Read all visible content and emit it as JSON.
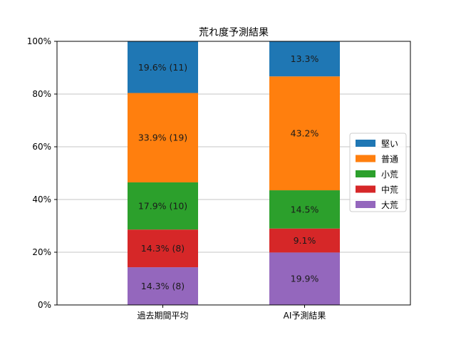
{
  "chart_data": {
    "type": "bar",
    "stacked": true,
    "title": "荒れ度予測結果",
    "categories": [
      "過去期間平均",
      "AI予測結果"
    ],
    "series": [
      {
        "name": "大荒",
        "color": "#9467bd",
        "values": [
          14.3,
          19.9
        ],
        "labels": [
          "14.3% (8)",
          "19.9%"
        ]
      },
      {
        "name": "中荒",
        "color": "#d62728",
        "values": [
          14.3,
          9.1
        ],
        "labels": [
          "14.3% (8)",
          "9.1%"
        ]
      },
      {
        "name": "小荒",
        "color": "#2ca02c",
        "values": [
          17.9,
          14.5
        ],
        "labels": [
          "17.9% (10)",
          "14.5%"
        ]
      },
      {
        "name": "普通",
        "color": "#ff7f0e",
        "values": [
          33.9,
          43.2
        ],
        "labels": [
          "33.9% (19)",
          "43.2%"
        ]
      },
      {
        "name": "堅い",
        "color": "#1f77b4",
        "values": [
          19.6,
          13.3
        ],
        "labels": [
          "19.6% (11)",
          "13.3%"
        ]
      }
    ],
    "yticks": [
      "0%",
      "20%",
      "40%",
      "60%",
      "80%",
      "100%"
    ],
    "ylim": [
      0,
      100
    ],
    "grid": "y",
    "legend_position": "center-right",
    "legend_order": [
      "堅い",
      "普通",
      "小荒",
      "中荒",
      "大荒"
    ]
  }
}
